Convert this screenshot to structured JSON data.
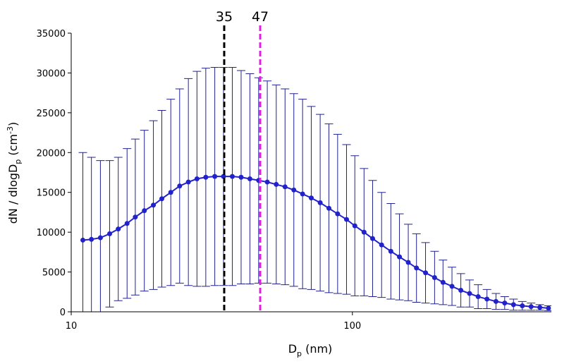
{
  "chart_data": {
    "type": "errorbar-line",
    "xlabel_parts": [
      "D",
      "p",
      " (nm)"
    ],
    "ylabel_parts": [
      "dN / dlogD",
      "p",
      " (cm",
      "-3",
      ")"
    ],
    "xscale": "log",
    "xlim": [
      10,
      510
    ],
    "xticks": [
      10,
      100
    ],
    "ylim": [
      0,
      35000
    ],
    "yticks": [
      0,
      5000,
      10000,
      15000,
      20000,
      25000,
      30000,
      35000
    ],
    "x": [
      11.0,
      11.8,
      12.7,
      13.7,
      14.7,
      15.8,
      16.9,
      18.2,
      19.6,
      21.0,
      22.6,
      24.3,
      26.1,
      28.0,
      30.1,
      32.4,
      34.8,
      37.4,
      40.2,
      43.2,
      46.4,
      49.8,
      53.6,
      57.6,
      61.9,
      66.5,
      71.4,
      76.8,
      82.5,
      88.6,
      95.3,
      102,
      110,
      118,
      127,
      137,
      147,
      158,
      169,
      182,
      196,
      210,
      226,
      243,
      261,
      280,
      301,
      324,
      348,
      374,
      402,
      432,
      464,
      498
    ],
    "series": [
      {
        "color": "#2222cc",
        "errcolor": "#22228f",
        "values": [
          9000,
          9100,
          9300,
          9800,
          10400,
          11100,
          11900,
          12700,
          13400,
          14200,
          15000,
          15800,
          16300,
          16700,
          16900,
          17000,
          17000,
          17000,
          16900,
          16700,
          16500,
          16300,
          16000,
          15700,
          15300,
          14800,
          14300,
          13700,
          13000,
          12300,
          11600,
          10800,
          10000,
          9200,
          8400,
          7600,
          6900,
          6200,
          5500,
          4900,
          4300,
          3700,
          3200,
          2700,
          2300,
          1900,
          1600,
          1300,
          1100,
          900,
          750,
          650,
          550,
          450
        ],
        "errors": [
          11000,
          10300,
          9700,
          9200,
          9000,
          9400,
          9800,
          10100,
          10600,
          11100,
          11700,
          12200,
          13000,
          13500,
          13700,
          13700,
          13700,
          13700,
          13400,
          13200,
          12900,
          12700,
          12500,
          12300,
          12100,
          11900,
          11500,
          11100,
          10600,
          10000,
          9400,
          8800,
          8000,
          7300,
          6600,
          6000,
          5400,
          4800,
          4300,
          3800,
          3300,
          2800,
          2400,
          2100,
          1700,
          1500,
          1200,
          1000,
          800,
          700,
          550,
          450,
          350,
          300
        ]
      }
    ],
    "vlines": [
      {
        "x": 35,
        "color": "#000000"
      },
      {
        "x": 47,
        "color": "#e020e0"
      }
    ]
  }
}
